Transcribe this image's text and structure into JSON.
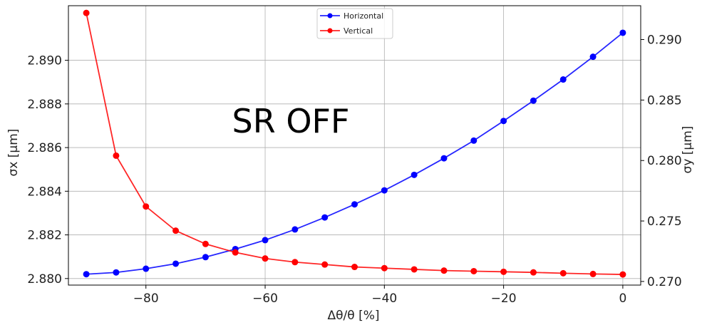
{
  "chart_data": {
    "type": "line",
    "annotation": "SR OFF",
    "xlabel": "Δθ/θ [%]",
    "ylabel_left": "σx [μm]",
    "ylabel_right": "σy [μm]",
    "xlim": [
      -93,
      3
    ],
    "ylim_left": [
      2.8797,
      2.8925
    ],
    "ylim_right": [
      0.2697,
      0.2928
    ],
    "xticks": [
      -80,
      -60,
      -40,
      -20,
      0
    ],
    "xtick_labels": [
      "−80",
      "−60",
      "−40",
      "−20",
      "0"
    ],
    "yticks_left": [
      2.88,
      2.882,
      2.884,
      2.886,
      2.888,
      2.89
    ],
    "yticks_left_labels": [
      "2.880",
      "2.882",
      "2.884",
      "2.886",
      "2.888",
      "2.890"
    ],
    "yticks_right": [
      0.27,
      0.275,
      0.28,
      0.285,
      0.29
    ],
    "yticks_right_labels": [
      "0.270",
      "0.275",
      "0.280",
      "0.285",
      "0.290"
    ],
    "grid": true,
    "legend_position": "top-center",
    "x": [
      -90,
      -85,
      -80,
      -75,
      -70,
      -65,
      -60,
      -55,
      -50,
      -45,
      -40,
      -35,
      -30,
      -25,
      -20,
      -15,
      -10,
      -5,
      0
    ],
    "series": [
      {
        "name": "Horizontal",
        "axis": "left",
        "color": "#0000ff",
        "values": [
          2.8802,
          2.88028,
          2.88045,
          2.88068,
          2.88098,
          2.88135,
          2.88176,
          2.88225,
          2.8828,
          2.8834,
          2.88404,
          2.88475,
          2.88551,
          2.88632,
          2.88722,
          2.88815,
          2.88912,
          2.89016,
          2.89126
        ]
      },
      {
        "name": "Vertical",
        "axis": "right",
        "color": "#ff0000",
        "values": [
          0.2922,
          0.2804,
          0.2762,
          0.2742,
          0.2731,
          0.2724,
          0.2719,
          0.2716,
          0.2714,
          0.2712,
          0.2711,
          0.271,
          0.2709,
          0.27085,
          0.2708,
          0.27075,
          0.27068,
          0.27062,
          0.27058
        ]
      }
    ]
  }
}
